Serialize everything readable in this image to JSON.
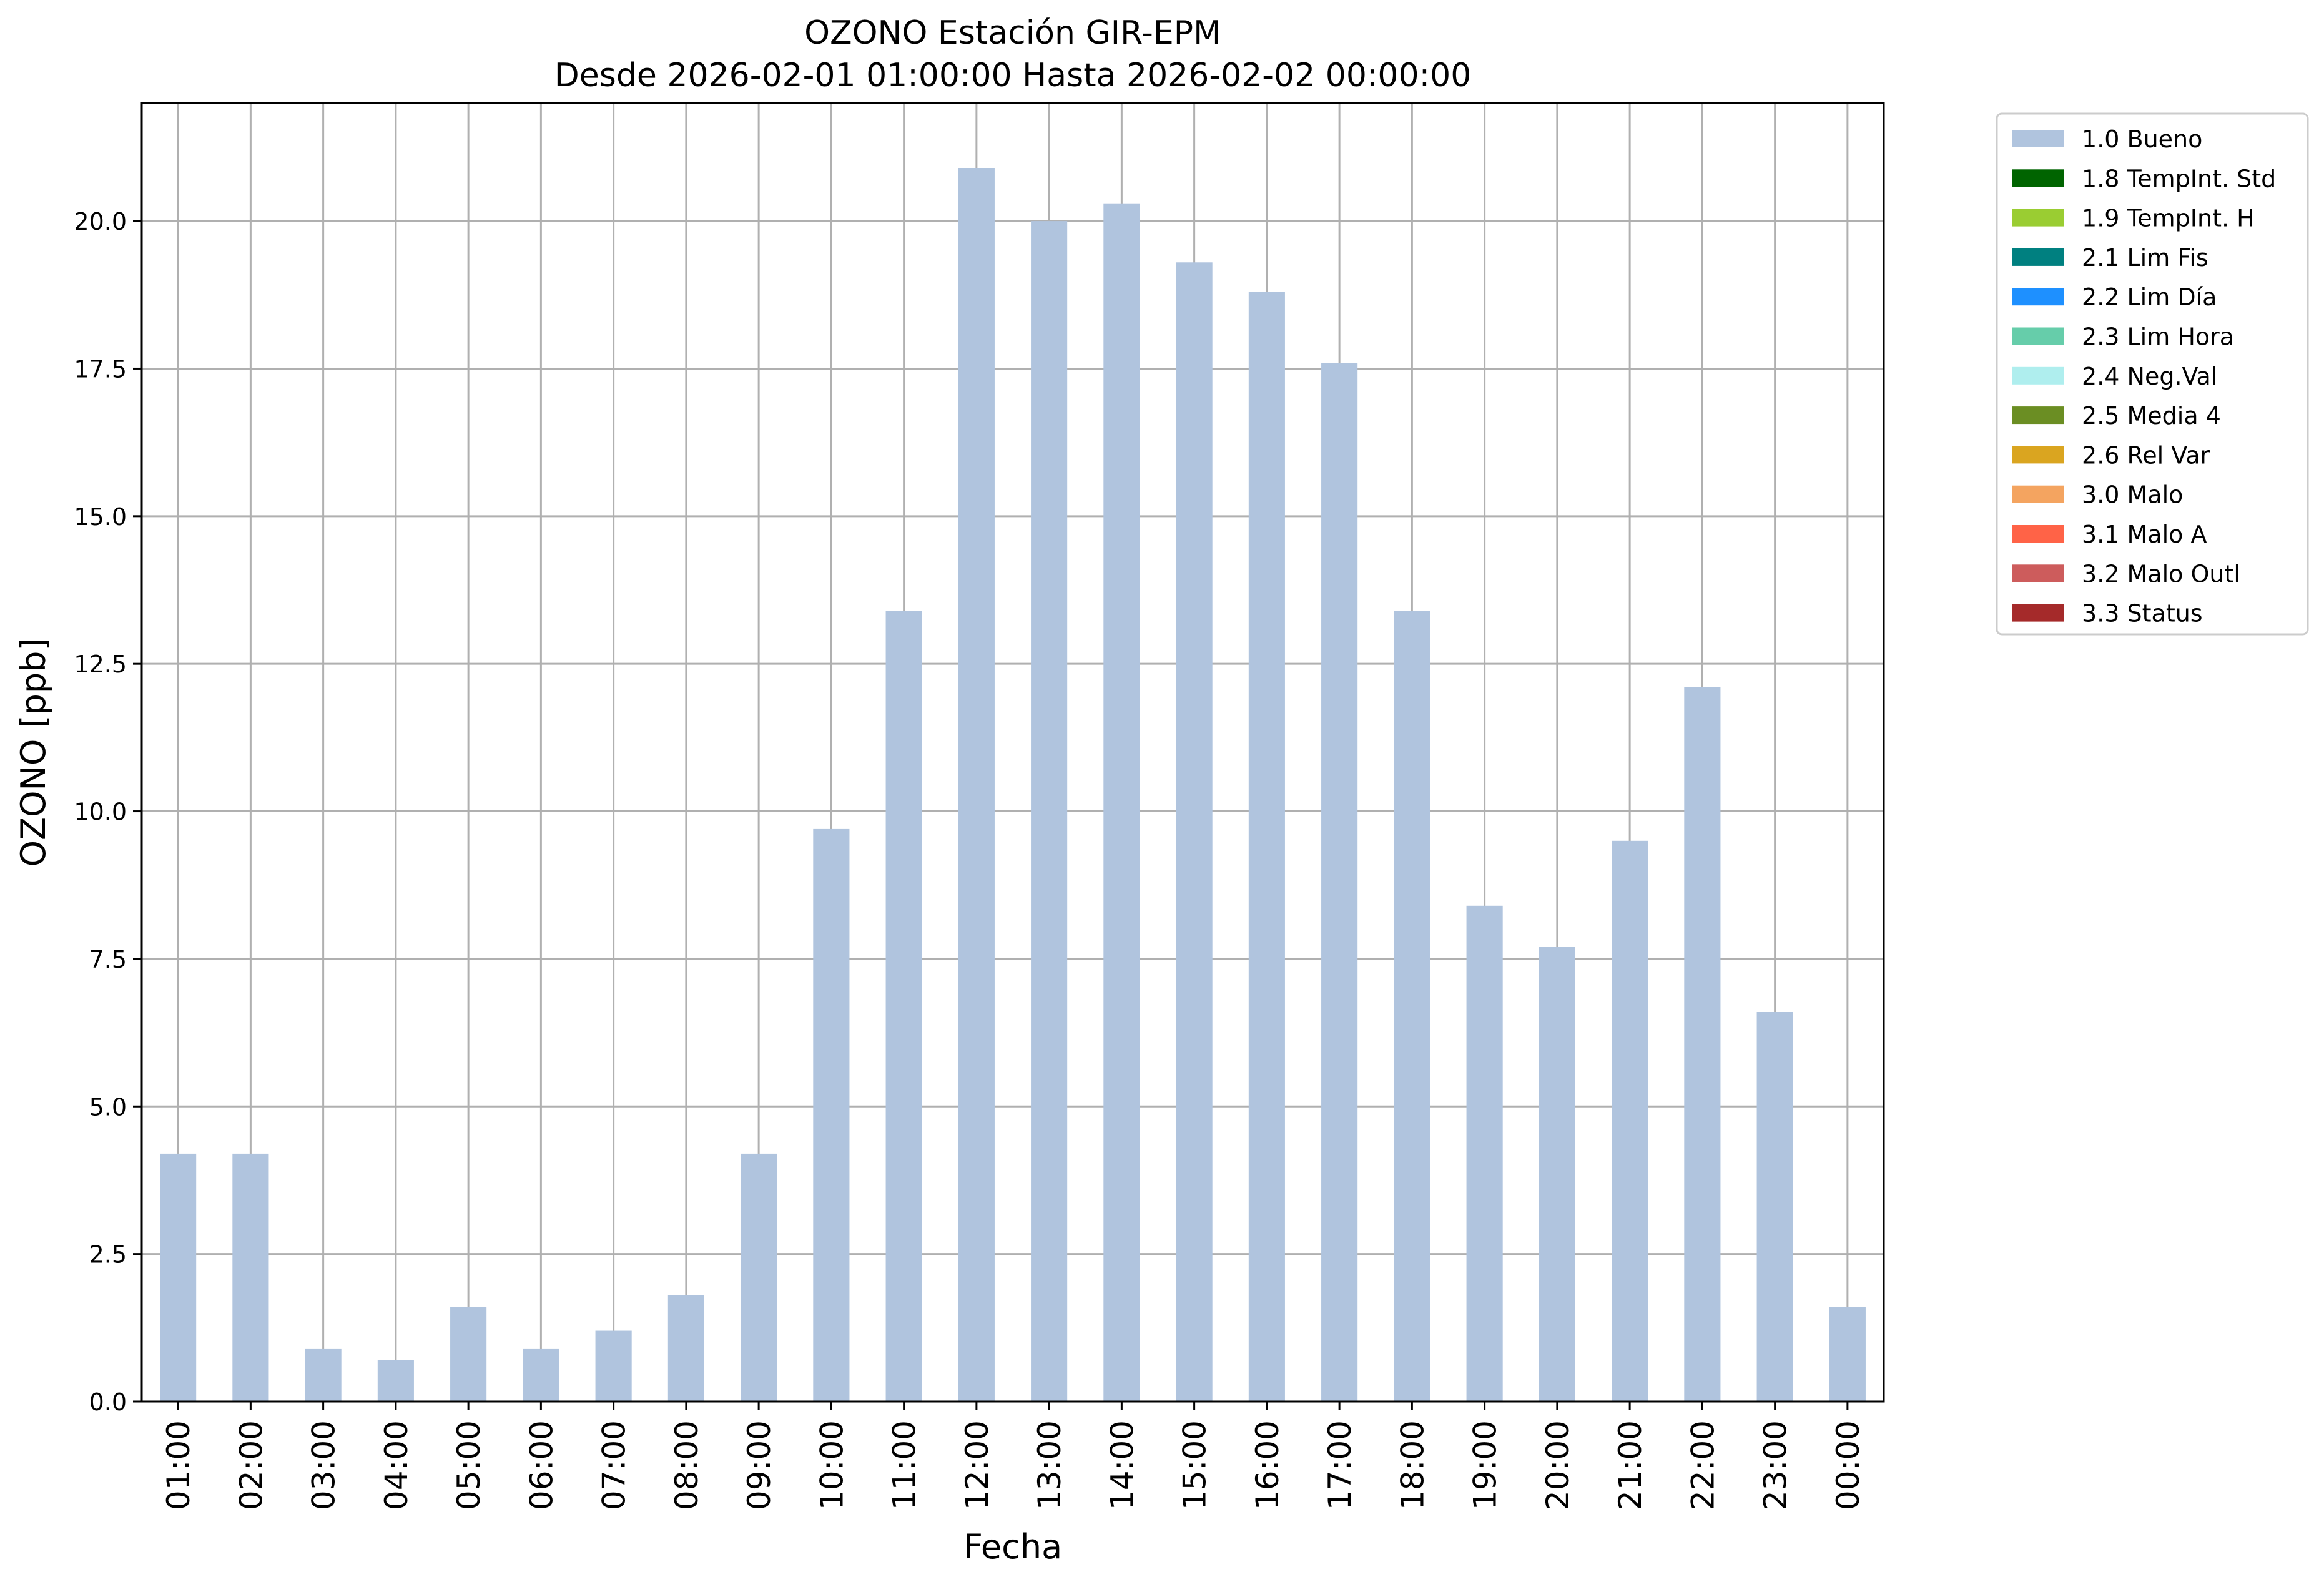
{
  "chart_data": {
    "type": "bar",
    "title": "OZONO Estación GIR-EPM",
    "subtitle": "Desde 2026-02-01 01:00:00 Hasta 2026-02-02 00:00:00",
    "xlabel": "Fecha",
    "ylabel": "OZONO [ppb]",
    "ylim": [
      0,
      22
    ],
    "yticks": [
      0.0,
      2.5,
      5.0,
      7.5,
      10.0,
      12.5,
      15.0,
      17.5,
      20.0
    ],
    "ytick_labels": [
      "0.0",
      "2.5",
      "5.0",
      "7.5",
      "10.0",
      "12.5",
      "15.0",
      "17.5",
      "20.0"
    ],
    "grid": true,
    "legend_position": "outside-top-right",
    "categories": [
      "01:00",
      "02:00",
      "03:00",
      "04:00",
      "05:00",
      "06:00",
      "07:00",
      "08:00",
      "09:00",
      "10:00",
      "11:00",
      "12:00",
      "13:00",
      "14:00",
      "15:00",
      "16:00",
      "17:00",
      "18:00",
      "19:00",
      "20:00",
      "21:00",
      "22:00",
      "23:00",
      "00:00"
    ],
    "series": [
      {
        "name": "1.0 Bueno",
        "color": "#b0c4de",
        "values": [
          4.2,
          4.2,
          0.9,
          0.7,
          1.6,
          0.9,
          1.2,
          1.8,
          4.2,
          9.7,
          13.4,
          20.9,
          20.0,
          20.3,
          19.3,
          18.8,
          17.6,
          13.4,
          8.4,
          7.7,
          9.5,
          12.1,
          6.6,
          1.6
        ]
      }
    ],
    "legend": [
      {
        "label": "1.0 Bueno",
        "color": "#b0c4de"
      },
      {
        "label": "1.8 TempInt. Std",
        "color": "#006400"
      },
      {
        "label": "1.9 TempInt. H",
        "color": "#9acd32"
      },
      {
        "label": "2.1 Lim Fis",
        "color": "#008080"
      },
      {
        "label": "2.2 Lim Día",
        "color": "#1e90ff"
      },
      {
        "label": "2.3 Lim Hora",
        "color": "#66cdaa"
      },
      {
        "label": "2.4 Neg.Val",
        "color": "#afeeee"
      },
      {
        "label": "2.5 Media 4",
        "color": "#6b8e23"
      },
      {
        "label": "2.6 Rel Var",
        "color": "#daa520"
      },
      {
        "label": "3.0 Malo",
        "color": "#f4a460"
      },
      {
        "label": "3.1 Malo A",
        "color": "#ff6347"
      },
      {
        "label": "3.2 Malo Outl",
        "color": "#cd5c5c"
      },
      {
        "label": "3.3 Status",
        "color": "#a52a2a"
      }
    ]
  }
}
